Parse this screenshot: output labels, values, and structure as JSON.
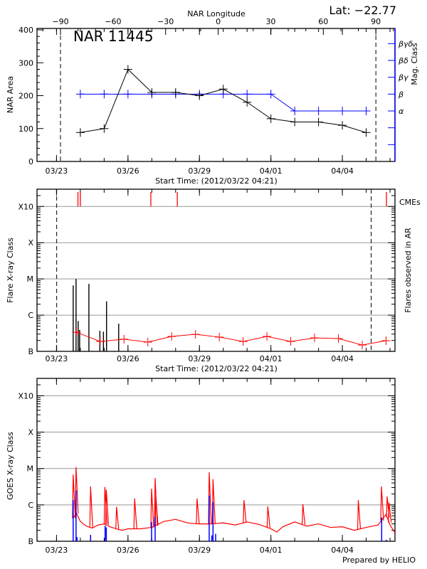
{
  "header": {
    "lat_label": "Lat: −22.77",
    "region_title": "NAR 11445"
  },
  "footer": {
    "credit": "Prepared by HELIO"
  },
  "colors": {
    "axis": "#000000",
    "mag_class": "#0000ff",
    "flare_rate": "#ff0000",
    "cme": "#ff0000",
    "goes_flux": "#ff0000",
    "goes_events": "#0000ff",
    "grid": "#999999"
  },
  "chart_data": [
    {
      "type": "line",
      "xlabel": "Start Time: (2012/03/22 04:21)",
      "xlim": [
        "2012-03-22T04:21",
        "2012-04-06T05:00"
      ],
      "x_ticks": [
        {
          "t": "2012-03-23T00:00",
          "label": "03/23"
        },
        {
          "t": "2012-03-26T00:00",
          "label": "03/26"
        },
        {
          "t": "2012-03-29T00:00",
          "label": "03/29"
        },
        {
          "t": "2012-04-01T00:00",
          "label": "04/01"
        },
        {
          "t": "2012-04-04T00:00",
          "label": "04/04"
        }
      ],
      "top_axis": {
        "label": "NAR Longitude",
        "xlim": [
          -103.4,
          100.9
        ],
        "ticks": [
          -90,
          -60,
          -30,
          0,
          30,
          60,
          90
        ],
        "tick_labels": [
          "−90",
          "−60",
          "−30",
          "0",
          "30",
          "60",
          "90"
        ]
      },
      "limb_longitudes": [
        -90,
        90
      ],
      "ylabel": "NAR Area",
      "ylim": [
        0,
        400
      ],
      "y_ticks": [
        0,
        100,
        200,
        300,
        400
      ],
      "y_tick_labels": [
        "0",
        "100",
        "200",
        "300",
        "400"
      ],
      "y2label": "Mag. Class",
      "y2_classes": [
        "",
        "",
        "α",
        "β",
        "βγ",
        "βδ",
        "βγδ"
      ],
      "y2_class_positions": [
        -2,
        -1,
        0,
        1,
        2,
        3,
        4
      ],
      "y2lim": [
        -3,
        4.9
      ],
      "x": [
        "2012-03-24T00:00",
        "2012-03-25T00:00",
        "2012-03-26T00:00",
        "2012-03-27T00:00",
        "2012-03-28T00:00",
        "2012-03-29T00:00",
        "2012-03-30T00:00",
        "2012-03-31T00:00",
        "2012-04-01T00:00",
        "2012-04-02T00:00",
        "2012-04-03T00:00",
        "2012-04-04T00:00",
        "2012-04-05T00:00"
      ],
      "series": [
        {
          "name": "NAR Area",
          "values": [
            88,
            100,
            280,
            210,
            210,
            200,
            220,
            180,
            130,
            120,
            120,
            110,
            88
          ]
        },
        {
          "name": "Mag. Class",
          "values": [
            "β",
            "β",
            "β",
            "β",
            "β",
            "β",
            "β",
            "β",
            "β",
            "α",
            "α",
            "α",
            "α"
          ]
        }
      ]
    },
    {
      "type": "bar",
      "xlabel": "Start Time: (2012/03/22 04:21)",
      "xlim": [
        "2012-03-22T04:21",
        "2012-04-06T05:00"
      ],
      "x_ticks": [
        {
          "t": "2012-03-23T00:00",
          "label": "03/23"
        },
        {
          "t": "2012-03-26T00:00",
          "label": "03/26"
        },
        {
          "t": "2012-03-29T00:00",
          "label": "03/29"
        },
        {
          "t": "2012-04-01T00:00",
          "label": "04/01"
        },
        {
          "t": "2012-04-04T00:00",
          "label": "04/04"
        }
      ],
      "limb_times": [
        "2012-03-23T00:10",
        "2012-04-05T05:00"
      ],
      "ylabel": "Flare X-ray Class",
      "y_scale": "log",
      "ylim_class": [
        "B1.0",
        "X30"
      ],
      "y_ticks": [
        "B1.0",
        "C1.0",
        "M1.0",
        "X1.0",
        "X10"
      ],
      "y_tick_labels": [
        "B",
        "C",
        "M",
        "X",
        "X10"
      ],
      "grid": true,
      "y2label": "Flares observed in AR",
      "flares": [
        {
          "t": "2012-03-23T16:48",
          "class": "C6.6"
        },
        {
          "t": "2012-03-23T19:41",
          "class": "M1.0"
        },
        {
          "t": "2012-03-23T21:50",
          "class": "B6.9"
        },
        {
          "t": "2012-03-23T23:17",
          "class": "B3.9"
        },
        {
          "t": "2012-03-24T08:38",
          "class": "C7.3"
        },
        {
          "t": "2012-03-24T19:41",
          "class": "B3.7"
        },
        {
          "t": "2012-03-24T23:17",
          "class": "B3.5"
        },
        {
          "t": "2012-03-25T02:24",
          "class": "C2.4"
        },
        {
          "t": "2012-03-25T14:38",
          "class": "B5.8"
        }
      ],
      "cme_label": "CMEs",
      "cmes": [
        "2012-03-23T21:36",
        "2012-03-24T00:00",
        "2012-03-26T23:02",
        "2012-03-28T01:41",
        "2012-04-05T20:24"
      ],
      "flare_rate": {
        "ylim": [
          0,
          1
        ],
        "x": [
          "2012-03-23T20:00",
          "2012-03-24T20:00",
          "2012-03-25T20:00",
          "2012-03-26T20:00",
          "2012-03-27T20:00",
          "2012-03-28T20:00",
          "2012-03-29T20:00",
          "2012-03-30T20:00",
          "2012-03-31T20:00",
          "2012-04-01T20:00",
          "2012-04-02T20:00",
          "2012-04-03T20:00",
          "2012-04-04T20:00",
          "2012-04-05T20:00"
        ],
        "values": [
          0.118,
          0.061,
          0.075,
          0.057,
          0.092,
          0.105,
          0.088,
          0.061,
          0.092,
          0.061,
          0.083,
          0.079,
          0.039,
          0.066
        ]
      }
    },
    {
      "type": "line",
      "x_ticks": [
        {
          "t": "2012-03-23T00:00",
          "label": "03/23"
        },
        {
          "t": "2012-03-26T00:00",
          "label": "03/26"
        },
        {
          "t": "2012-03-29T00:00",
          "label": "03/29"
        },
        {
          "t": "2012-04-01T00:00",
          "label": "04/01"
        },
        {
          "t": "2012-04-04T00:00",
          "label": "04/04"
        }
      ],
      "xlim": [
        "2012-03-22T04:21",
        "2012-04-06T05:00"
      ],
      "ylabel": "GOES X-ray Class",
      "y_scale": "log",
      "ylim_class": [
        "B1.0",
        "X30"
      ],
      "y_ticks": [
        "B1.0",
        "C1.0",
        "M1.0",
        "X1.0",
        "X10"
      ],
      "y_tick_labels": [
        "B",
        "C",
        "M",
        "X",
        "X10"
      ],
      "grid": true,
      "goes_background": [
        [
          "2012-03-23T16:48",
          "B4.3"
        ],
        [
          "2012-03-23T20:00",
          "B6.0"
        ],
        [
          "2012-03-24T00:00",
          "B3.5"
        ],
        [
          "2012-03-24T06:00",
          "B2.6"
        ],
        [
          "2012-03-24T12:00",
          "B2.3"
        ],
        [
          "2012-03-24T18:00",
          "B2.8"
        ],
        [
          "2012-03-25T00:00",
          "B3.0"
        ],
        [
          "2012-03-25T06:00",
          "B2.5"
        ],
        [
          "2012-03-25T12:00",
          "B2.2"
        ],
        [
          "2012-03-25T18:00",
          "B2.0"
        ],
        [
          "2012-03-26T00:00",
          "B2.2"
        ],
        [
          "2012-03-26T12:00",
          "B2.2"
        ],
        [
          "2012-03-27T00:00",
          "B2.4"
        ],
        [
          "2012-03-27T12:00",
          "B3.5"
        ],
        [
          "2012-03-28T00:00",
          "B4.0"
        ],
        [
          "2012-03-28T12:00",
          "B3.2"
        ],
        [
          "2012-03-29T00:00",
          "B3.0"
        ],
        [
          "2012-03-29T12:00",
          "B3.0"
        ],
        [
          "2012-03-30T00:00",
          "B3.2"
        ],
        [
          "2012-03-30T12:00",
          "B2.8"
        ],
        [
          "2012-03-31T00:00",
          "B3.4"
        ],
        [
          "2012-03-31T12:00",
          "B2.9"
        ],
        [
          "2012-04-01T00:00",
          "B2.2"
        ],
        [
          "2012-04-01T06:00",
          "B1.8"
        ],
        [
          "2012-04-01T12:00",
          "B2.5"
        ],
        [
          "2012-04-02T00:00",
          "B3.4"
        ],
        [
          "2012-04-02T12:00",
          "B2.6"
        ],
        [
          "2012-04-03T00:00",
          "B3.0"
        ],
        [
          "2012-04-03T12:00",
          "B2.4"
        ],
        [
          "2012-04-04T00:00",
          "B2.5"
        ],
        [
          "2012-04-04T12:00",
          "B2.0"
        ],
        [
          "2012-04-05T00:00",
          "B2.4"
        ],
        [
          "2012-04-05T12:00",
          "B2.8"
        ],
        [
          "2012-04-05T20:00",
          "B5.5"
        ],
        [
          "2012-04-06T00:00",
          "B2.8"
        ],
        [
          "2012-04-06T05:00",
          "B1.7"
        ]
      ],
      "goes_peaks": [
        [
          "2012-03-23T16:48",
          "C6.8"
        ],
        [
          "2012-03-23T19:41",
          "M1.1"
        ],
        [
          "2012-03-24T10:19",
          "C3.2"
        ],
        [
          "2012-03-25T00:43",
          "C3.1"
        ],
        [
          "2012-03-25T02:10",
          "C2.6"
        ],
        [
          "2012-03-25T12:29",
          "B8.8"
        ],
        [
          "2012-03-26T06:43",
          "C1.5"
        ],
        [
          "2012-03-26T23:46",
          "C2.8"
        ],
        [
          "2012-03-27T03:22",
          "C5.5"
        ],
        [
          "2012-03-27T04:05",
          "C1.7"
        ],
        [
          "2012-03-28T21:36",
          "C1.5"
        ],
        [
          "2012-03-29T09:50",
          "C7.9"
        ],
        [
          "2012-03-29T13:41",
          "C5.1"
        ],
        [
          "2012-03-30T20:53",
          "C1.35"
        ],
        [
          "2012-03-31T20:53",
          "B9.1"
        ],
        [
          "2012-04-02T08:10",
          "C1.05"
        ],
        [
          "2012-04-04T16:05",
          "C1.35"
        ],
        [
          "2012-04-05T15:22",
          "C3.2"
        ],
        [
          "2012-04-05T21:07",
          "C1.7"
        ],
        [
          "2012-04-05T23:02",
          "C1.15"
        ]
      ],
      "goes_events": [
        [
          "2012-03-23T16:48",
          "C1.35"
        ],
        [
          "2012-03-23T19:41",
          "C2.5"
        ],
        [
          "2012-03-23T20:38",
          "B1.3"
        ],
        [
          "2012-03-24T10:19",
          "B1.5"
        ],
        [
          "2012-03-25T00:58",
          "B2.7"
        ],
        [
          "2012-03-25T02:10",
          "B2.4"
        ],
        [
          "2012-03-26T23:46",
          "B3.4"
        ],
        [
          "2012-03-27T03:22",
          "B4.7"
        ],
        [
          "2012-03-29T09:50",
          "C1.8"
        ],
        [
          "2012-03-29T12:29",
          "B1.45"
        ],
        [
          "2012-03-29T13:41",
          "C1.2"
        ],
        [
          "2012-03-29T16:19",
          "B1.6"
        ],
        [
          "2012-04-05T15:36",
          "B4.5"
        ],
        [
          "2012-04-05T20:24",
          "B1.1"
        ]
      ]
    }
  ]
}
